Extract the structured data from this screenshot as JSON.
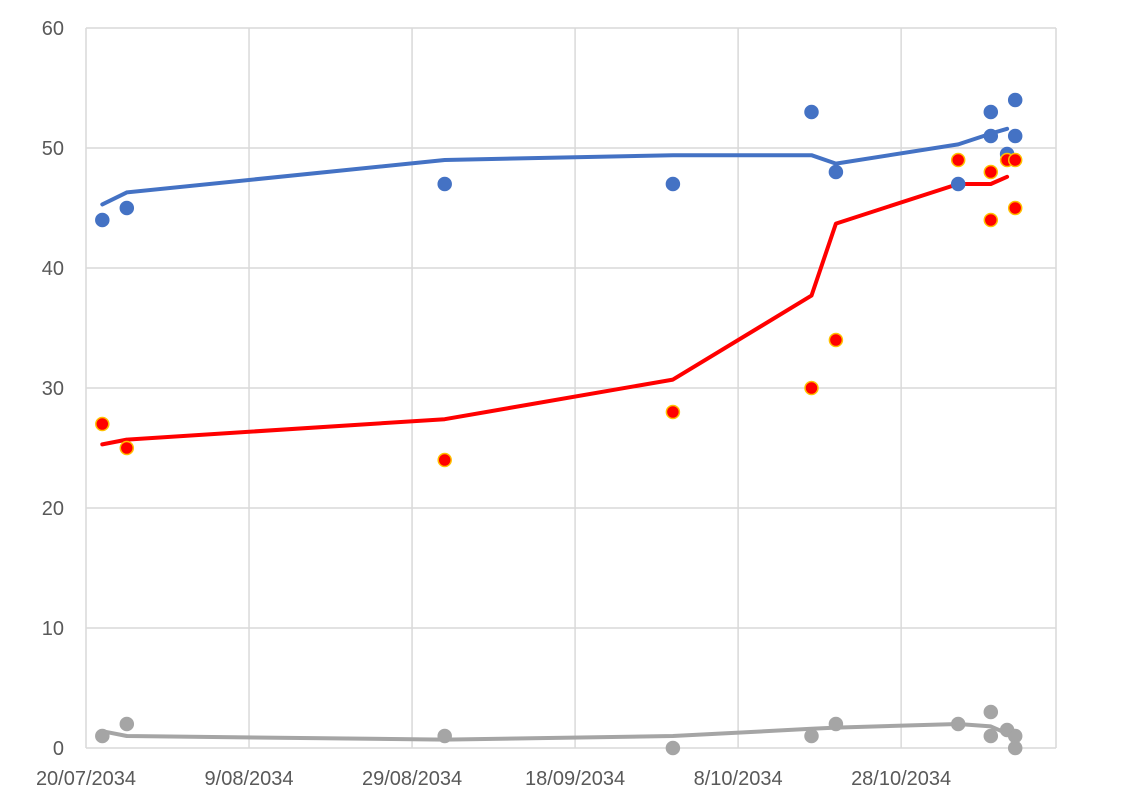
{
  "chart_data": {
    "type": "scatter",
    "title": "",
    "xlabel": "",
    "ylabel": "",
    "x_axis": {
      "scale": "date",
      "min": "2034-07-20",
      "max": "2034-11-16",
      "tick_dates": [
        "2034-07-20",
        "2034-08-09",
        "2034-08-29",
        "2034-09-18",
        "2034-10-08",
        "2034-10-28"
      ],
      "tick_labels": [
        "20/07/2034",
        "9/08/2034",
        "29/08/2034",
        "18/09/2034",
        "8/10/2034",
        "28/10/2034"
      ]
    },
    "y_axis": {
      "min": 0,
      "max": 60,
      "ticks": [
        0,
        10,
        20,
        30,
        40,
        50,
        60
      ],
      "tick_labels": [
        "0",
        "10",
        "20",
        "30",
        "40",
        "50",
        "60"
      ]
    },
    "grid": {
      "vertical": true,
      "horizontal": true
    },
    "legend": "none",
    "series": [
      {
        "color": "#4472c4",
        "marker_edge": "#4472c4",
        "points": [
          {
            "x": "2034-07-22",
            "y": 44
          },
          {
            "x": "2034-07-25",
            "y": 45
          },
          {
            "x": "2034-09-02",
            "y": 47
          },
          {
            "x": "2034-09-30",
            "y": 47
          },
          {
            "x": "2034-10-17",
            "y": 53
          },
          {
            "x": "2034-10-20",
            "y": 48
          },
          {
            "x": "2034-11-04",
            "y": 47
          },
          {
            "x": "2034-11-08",
            "y": 53
          },
          {
            "x": "2034-11-08",
            "y": 51
          },
          {
            "x": "2034-11-10",
            "y": 49.5
          },
          {
            "x": "2034-11-11",
            "y": 54
          },
          {
            "x": "2034-11-11",
            "y": 51
          }
        ],
        "trend": [
          {
            "x": "2034-07-22",
            "y": 45.3
          },
          {
            "x": "2034-07-25",
            "y": 46.3
          },
          {
            "x": "2034-09-02",
            "y": 49
          },
          {
            "x": "2034-09-30",
            "y": 49.4
          },
          {
            "x": "2034-10-17",
            "y": 49.4
          },
          {
            "x": "2034-10-20",
            "y": 48.7
          },
          {
            "x": "2034-11-04",
            "y": 50.3
          },
          {
            "x": "2034-11-08",
            "y": 51.2
          },
          {
            "x": "2034-11-10",
            "y": 51.6
          }
        ]
      },
      {
        "color": "#ff0000",
        "marker_edge": "#ffc000",
        "points": [
          {
            "x": "2034-07-22",
            "y": 27
          },
          {
            "x": "2034-07-25",
            "y": 25
          },
          {
            "x": "2034-09-02",
            "y": 24
          },
          {
            "x": "2034-09-30",
            "y": 28
          },
          {
            "x": "2034-10-17",
            "y": 30
          },
          {
            "x": "2034-10-20",
            "y": 34
          },
          {
            "x": "2034-11-04",
            "y": 49
          },
          {
            "x": "2034-11-08",
            "y": 48
          },
          {
            "x": "2034-11-08",
            "y": 44
          },
          {
            "x": "2034-11-10",
            "y": 49
          },
          {
            "x": "2034-11-11",
            "y": 49
          },
          {
            "x": "2034-11-11",
            "y": 45
          }
        ],
        "trend": [
          {
            "x": "2034-07-22",
            "y": 25.3
          },
          {
            "x": "2034-07-25",
            "y": 25.7
          },
          {
            "x": "2034-09-02",
            "y": 27.4
          },
          {
            "x": "2034-09-30",
            "y": 30.7
          },
          {
            "x": "2034-10-17",
            "y": 37.7
          },
          {
            "x": "2034-10-20",
            "y": 43.7
          },
          {
            "x": "2034-11-04",
            "y": 47
          },
          {
            "x": "2034-11-08",
            "y": 47
          },
          {
            "x": "2034-11-10",
            "y": 47.6
          }
        ]
      },
      {
        "color": "#a5a5a5",
        "marker_edge": "#a5a5a5",
        "points": [
          {
            "x": "2034-07-22",
            "y": 1
          },
          {
            "x": "2034-07-25",
            "y": 2
          },
          {
            "x": "2034-09-02",
            "y": 1
          },
          {
            "x": "2034-09-30",
            "y": 0
          },
          {
            "x": "2034-10-17",
            "y": 1
          },
          {
            "x": "2034-10-20",
            "y": 2
          },
          {
            "x": "2034-11-04",
            "y": 2
          },
          {
            "x": "2034-11-08",
            "y": 3
          },
          {
            "x": "2034-11-08",
            "y": 1
          },
          {
            "x": "2034-11-10",
            "y": 1.5
          },
          {
            "x": "2034-11-11",
            "y": 1
          },
          {
            "x": "2034-11-11",
            "y": 0
          }
        ],
        "trend": [
          {
            "x": "2034-07-22",
            "y": 1.4
          },
          {
            "x": "2034-07-25",
            "y": 1
          },
          {
            "x": "2034-09-02",
            "y": 0.7
          },
          {
            "x": "2034-09-30",
            "y": 1
          },
          {
            "x": "2034-10-17",
            "y": 1.6
          },
          {
            "x": "2034-10-20",
            "y": 1.7
          },
          {
            "x": "2034-11-04",
            "y": 2
          },
          {
            "x": "2034-11-08",
            "y": 1.8
          },
          {
            "x": "2034-11-10",
            "y": 1.2
          }
        ]
      }
    ]
  }
}
